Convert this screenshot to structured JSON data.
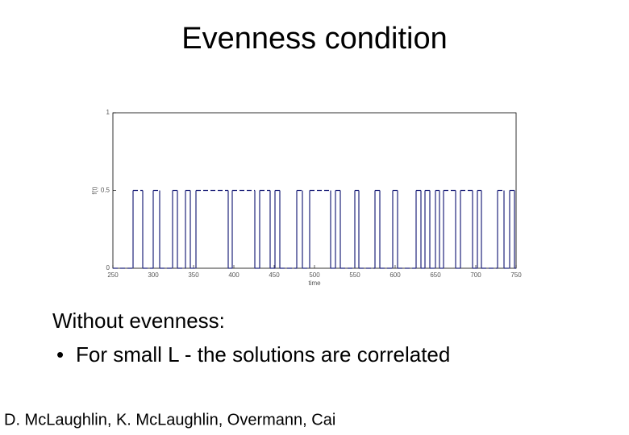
{
  "slide": {
    "title": "Evenness condition",
    "body": "Without evenness:",
    "bullet": "For small L - the solutions are correlated",
    "footer": "D. McLaughlin, K. McLaughlin, Overmann, Cai"
  },
  "chart_data": {
    "type": "step",
    "xlabel": "time",
    "ylabel": "f(t)",
    "color": "#1f237a",
    "x": [
      250,
      275,
      287,
      300,
      308,
      324,
      330,
      340,
      346,
      353,
      393,
      398,
      426,
      432,
      445,
      451,
      457,
      478,
      485,
      494,
      520,
      526,
      532,
      550,
      555,
      575,
      581,
      597,
      603,
      626,
      632,
      637,
      643,
      650,
      655,
      660,
      675,
      681,
      696,
      702,
      707,
      727,
      735,
      742,
      748
    ],
    "values": [
      0,
      0.5,
      0,
      0.5,
      0,
      0.5,
      0,
      0.5,
      0,
      0.5,
      0,
      0.5,
      0,
      0.5,
      0,
      0.5,
      0,
      0.5,
      0,
      0.5,
      0,
      0.5,
      0,
      0.5,
      0,
      0.5,
      0,
      0.5,
      0,
      0.5,
      0,
      0.5,
      0,
      0.5,
      0,
      0.5,
      0,
      0.5,
      0,
      0.5,
      0,
      0.5,
      0,
      0.5,
      0
    ],
    "xlim": [
      250,
      750
    ],
    "xticks": [
      250,
      300,
      350,
      400,
      450,
      500,
      550,
      600,
      650,
      700,
      750
    ],
    "ylim": [
      0,
      1
    ],
    "yticks": [
      0,
      0.5,
      1
    ]
  }
}
